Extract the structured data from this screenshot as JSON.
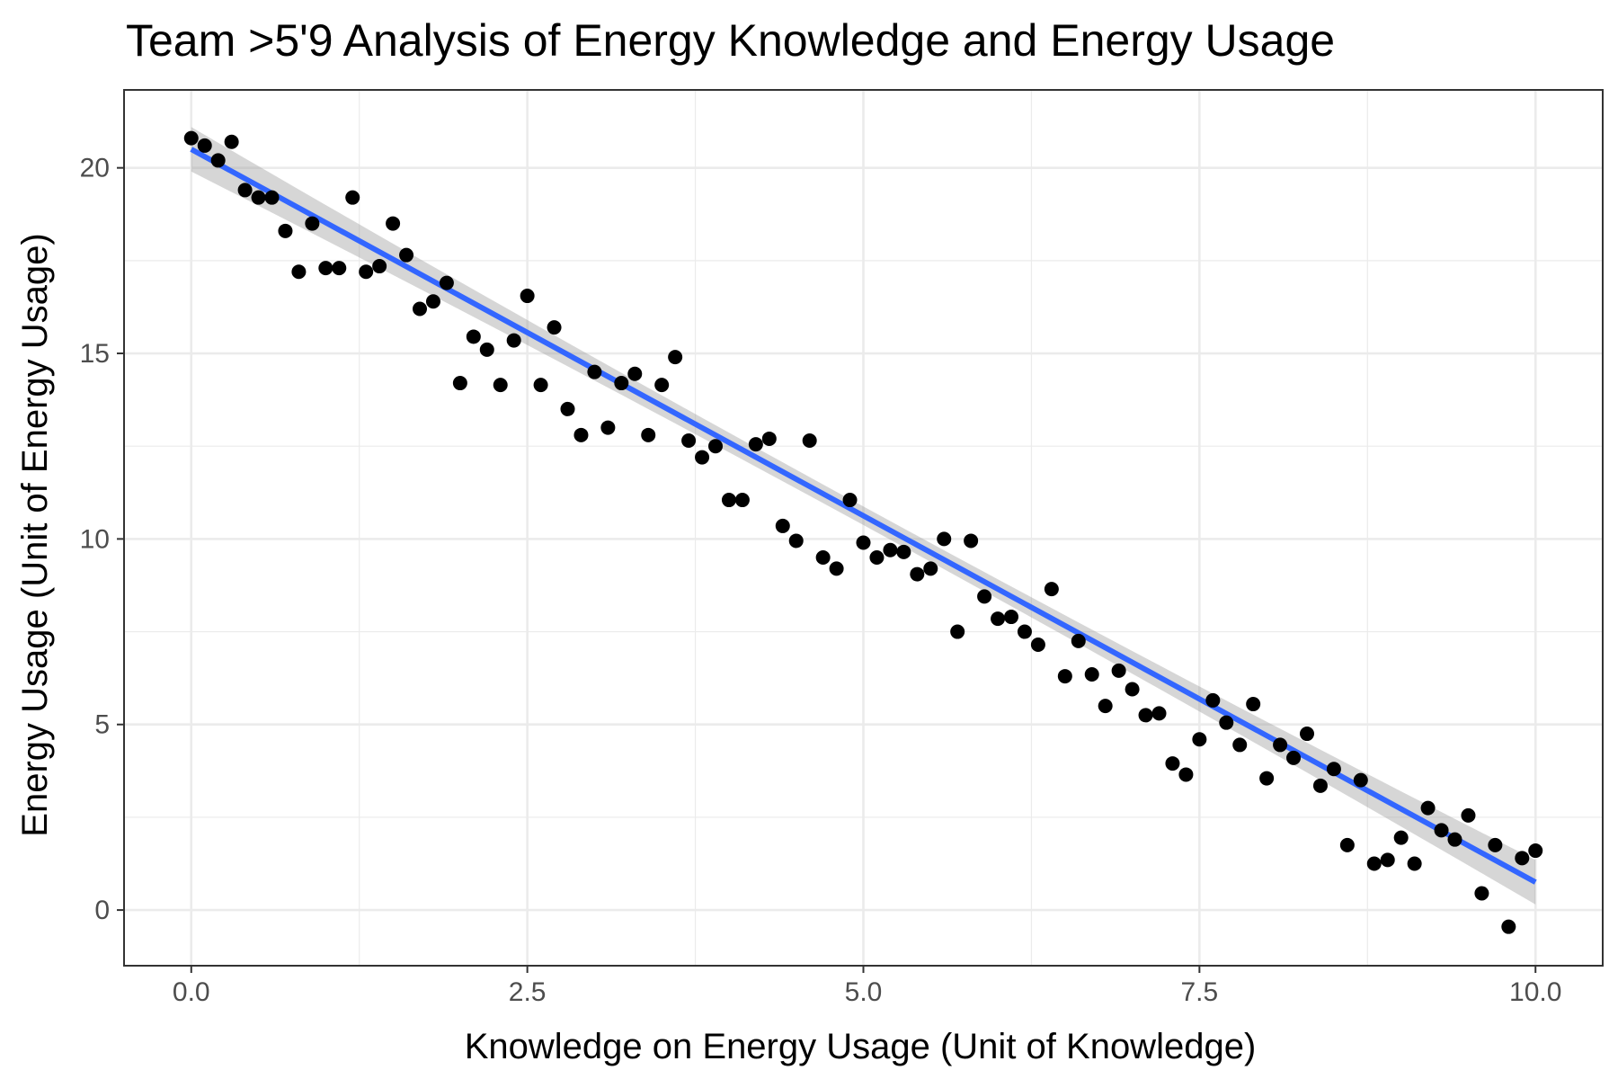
{
  "chart_data": {
    "type": "scatter",
    "title": "Team >5'9 Analysis of Energy Knowledge and Energy Usage",
    "xlabel": "Knowledge on Energy Usage (Unit of Knowledge)",
    "ylabel": "Energy Usage (Unit of Energy Usage)",
    "xlim": [
      -0.5,
      10.5
    ],
    "ylim": [
      -1.5,
      22.1
    ],
    "x_ticks": [
      0,
      2.5,
      5,
      7.5,
      10
    ],
    "x_tick_labels": [
      "0.0",
      "2.5",
      "5.0",
      "7.5",
      "10.0"
    ],
    "y_ticks": [
      0,
      5,
      10,
      15,
      20
    ],
    "y_tick_labels": [
      "0",
      "5",
      "10",
      "15",
      "20"
    ],
    "grid": true,
    "legend": "none",
    "colors": {
      "points": "#000000",
      "fit_line": "#3366ff",
      "confidence_band": "#999999",
      "grid": "#ebebeb",
      "panel_border": "#333333"
    },
    "fit": {
      "method": "linear regression with confidence band",
      "start": [
        0,
        20.5
      ],
      "end": [
        10,
        0.75
      ],
      "band_halfwidth_at_ends": 0.6,
      "band_halfwidth_at_center": 0.25
    },
    "points": {
      "x": [
        0,
        0.1,
        0.2,
        0.3,
        0.4,
        0.5,
        0.6,
        0.7,
        0.8,
        0.9,
        1.0,
        1.1,
        1.2,
        1.3,
        1.4,
        1.5,
        1.6,
        1.7,
        1.8,
        1.9,
        2.0,
        2.1,
        2.2,
        2.3,
        2.4,
        2.5,
        2.6,
        2.7,
        2.8,
        2.9,
        3.0,
        3.1,
        3.2,
        3.3,
        3.4,
        3.5,
        3.6,
        3.7,
        3.8,
        3.9,
        4.0,
        4.1,
        4.2,
        4.3,
        4.4,
        4.5,
        4.6,
        4.7,
        4.8,
        4.9,
        5.0,
        5.1,
        5.2,
        5.3,
        5.4,
        5.5,
        5.6,
        5.7,
        5.8,
        5.9,
        6.0,
        6.1,
        6.2,
        6.3,
        6.4,
        6.5,
        6.6,
        6.7,
        6.8,
        6.9,
        7.0,
        7.1,
        7.2,
        7.3,
        7.4,
        7.5,
        7.6,
        7.7,
        7.8,
        7.9,
        8.0,
        8.1,
        8.2,
        8.3,
        8.4,
        8.5,
        8.6,
        8.7,
        8.8,
        8.9,
        9.0,
        9.1,
        9.2,
        9.3,
        9.4,
        9.5,
        9.6,
        9.7,
        9.8,
        9.9,
        10.0
      ],
      "y": [
        20.8,
        20.6,
        20.2,
        20.7,
        19.4,
        19.2,
        19.2,
        18.3,
        17.2,
        18.5,
        17.3,
        17.3,
        19.2,
        17.2,
        17.35,
        18.5,
        17.65,
        16.2,
        16.4,
        16.9,
        14.2,
        15.45,
        15.1,
        14.15,
        15.35,
        16.55,
        14.15,
        15.7,
        13.5,
        12.8,
        14.5,
        13.0,
        14.2,
        14.45,
        12.8,
        14.15,
        14.9,
        12.65,
        12.2,
        12.5,
        11.05,
        11.05,
        12.55,
        12.7,
        10.35,
        9.95,
        12.65,
        9.5,
        9.2,
        11.05,
        9.9,
        9.5,
        9.7,
        9.65,
        9.05,
        9.2,
        10.0,
        7.5,
        9.95,
        8.45,
        7.85,
        7.9,
        7.5,
        7.15,
        8.65,
        6.3,
        7.25,
        6.35,
        5.5,
        6.45,
        5.95,
        5.25,
        5.3,
        3.95,
        3.65,
        4.6,
        5.65,
        5.05,
        4.45,
        5.55,
        3.55,
        4.45,
        4.1,
        4.75,
        3.35,
        3.8,
        1.75,
        3.5,
        1.25,
        1.35,
        1.95,
        1.25,
        2.75,
        2.15,
        1.9,
        2.55,
        0.45,
        1.75,
        -0.45,
        1.4,
        1.6
      ]
    }
  }
}
